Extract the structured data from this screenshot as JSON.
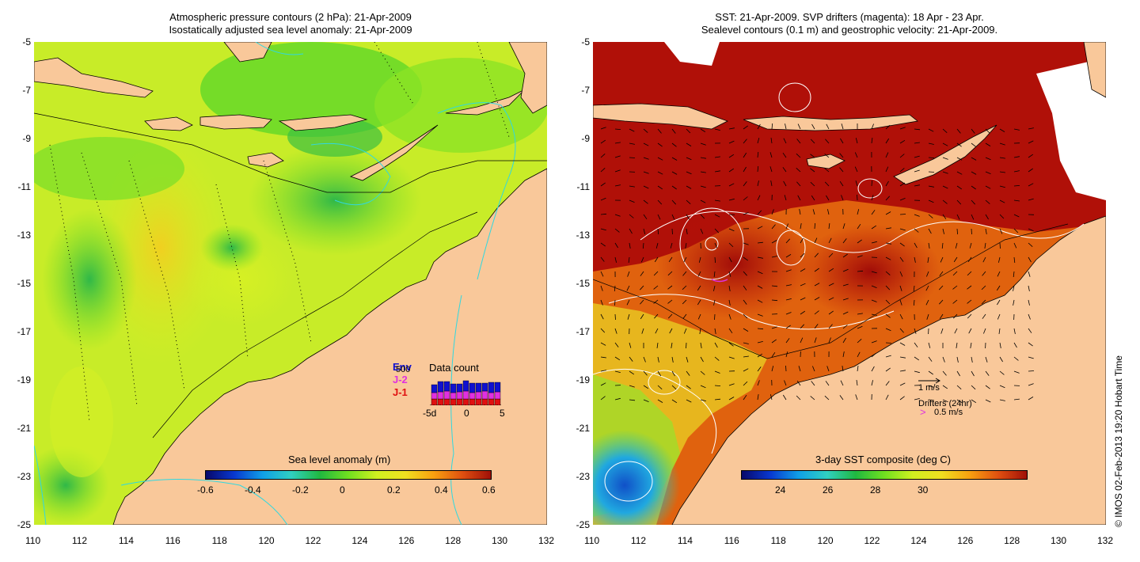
{
  "left_panel": {
    "title_line1": "Atmospheric pressure contours (2 hPa): 21-Apr-2009",
    "title_line2": "Isostatically adjusted sea level anomaly: 21-Apr-2009",
    "colorbar_label": "Sea level anomaly (m)",
    "colorbar_ticks": [
      "-0.6",
      "-0.4",
      "-0.2",
      "0",
      "0.2",
      "0.4",
      "0.6"
    ],
    "datacount": {
      "title": "Data count",
      "legend": [
        "Env",
        "J-2",
        "J-1"
      ],
      "legend_colors": [
        "#1010d0",
        "#e030e0",
        "#e01010"
      ],
      "ymax_label": "500",
      "x_ticks": [
        "-5d",
        "0",
        "5"
      ]
    }
  },
  "right_panel": {
    "title_line1": "SST: 21-Apr-2009. SVP drifters (magenta): 18 Apr - 23 Apr.",
    "title_line2": "Sealevel contours (0.1 m) and geostrophic velocity: 21-Apr-2009.",
    "colorbar_label": "3-day SST composite (deg C)",
    "colorbar_ticks": [
      "24",
      "26",
      "28",
      "30"
    ],
    "velocity_scale_label": "1 m/s",
    "drifters_label": "Drifters (24hr)",
    "drifter_speed_label": "0.5 m/s"
  },
  "axes": {
    "x_ticks": [
      "110",
      "112",
      "114",
      "116",
      "118",
      "120",
      "122",
      "124",
      "126",
      "128",
      "130",
      "132"
    ],
    "y_ticks": [
      "-5",
      "-7",
      "-9",
      "-11",
      "-13",
      "-15",
      "-17",
      "-19",
      "-21",
      "-23",
      "-25"
    ]
  },
  "credit": "© IMOS 02-Feb-2013 19:20 Hobart Time",
  "colors": {
    "land": "#f9c89a",
    "sla_green": "#6ee024",
    "sla_yellow": "#d6f024",
    "sst_red": "#b81208",
    "sst_orange": "#e06010",
    "coast": "#000000",
    "cyan_contour": "#30d8e0"
  }
}
